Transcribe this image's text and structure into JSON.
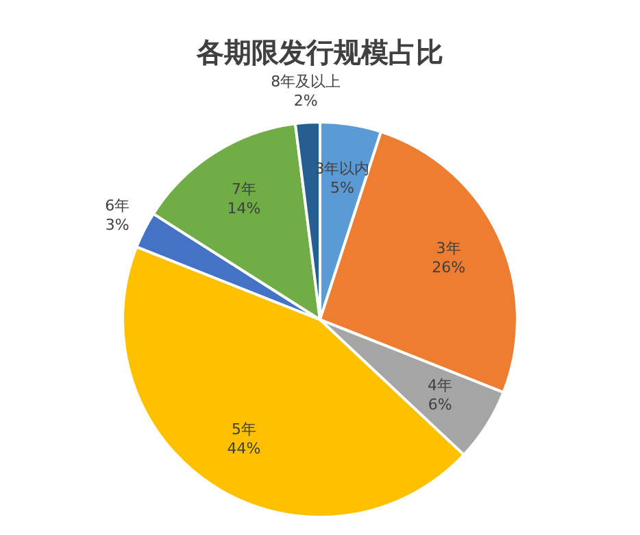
{
  "chart_data": {
    "type": "pie",
    "title": "各期限发行规模占比",
    "categories": [
      "3年以内",
      "3年",
      "4年",
      "5年",
      "6年",
      "7年",
      "8年及以上"
    ],
    "values": [
      5,
      26,
      6,
      44,
      3,
      14,
      2
    ],
    "value_labels": [
      "5%",
      "26%",
      "6%",
      "44%",
      "3%",
      "14%",
      "2%"
    ],
    "colors": [
      "#5b9bd5",
      "#ed7d31",
      "#a5a5a5",
      "#ffc000",
      "#4472c4",
      "#70ad47",
      "#255e91"
    ],
    "legend": false
  }
}
